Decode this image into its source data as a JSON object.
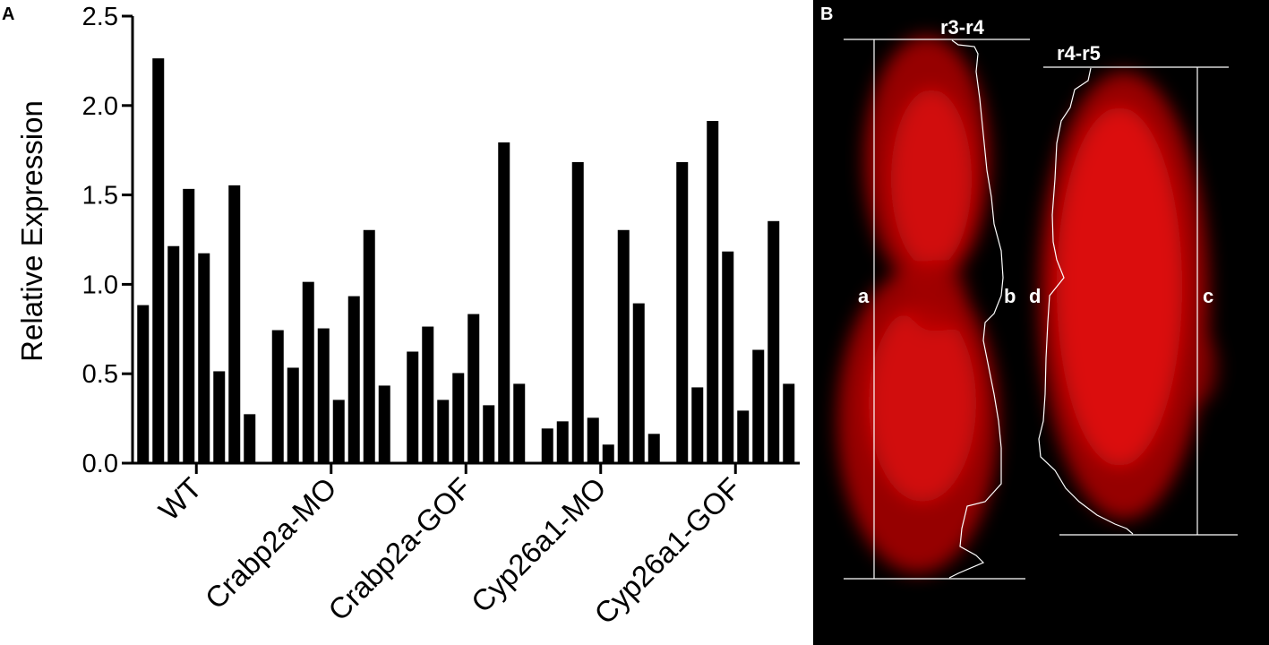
{
  "panels": {
    "a_letter": "A",
    "b_letter": "B"
  },
  "chart_data": {
    "type": "bar",
    "ylabel": "Relative Expression",
    "xlabel": "",
    "ylim": [
      0,
      2.5
    ],
    "yticks": [
      "0.0",
      "0.5",
      "1.0",
      "1.5",
      "2.0",
      "2.5"
    ],
    "groups": [
      {
        "label": "WT",
        "color": "#33dde8",
        "pattern": "horizontal",
        "values": [
          0.88,
          2.26,
          1.21,
          1.53,
          1.17,
          0.51,
          1.55,
          0.27
        ]
      },
      {
        "label": "Crabp2a-MO",
        "color": "#e02020",
        "pattern": "diagonal",
        "values": [
          0.74,
          0.53,
          1.01,
          0.75,
          0.35,
          0.93,
          1.3,
          0.43
        ]
      },
      {
        "label": "Crabp2a-GOF",
        "color": "#2ee62e",
        "pattern": "diagonal",
        "values": [
          0.62,
          0.76,
          0.35,
          0.5,
          0.83,
          0.32,
          1.79,
          0.44
        ]
      },
      {
        "label": "Cyp26a1-MO",
        "color": "#e02020",
        "pattern": "checker",
        "values": [
          0.19,
          0.23,
          1.68,
          0.25,
          0.1,
          1.3,
          0.89,
          0.16
        ]
      },
      {
        "label": "Cyp26a1-GOF",
        "color": "#2ee62e",
        "pattern": "checker",
        "values": [
          1.68,
          0.42,
          1.91,
          1.18,
          0.29,
          0.63,
          1.35,
          0.44
        ]
      }
    ]
  },
  "image_panel": {
    "labels": {
      "r3r4": "r3-r4",
      "r4r5": "r4-r5",
      "a": "a",
      "b": "b",
      "c": "c",
      "d": "d"
    }
  }
}
